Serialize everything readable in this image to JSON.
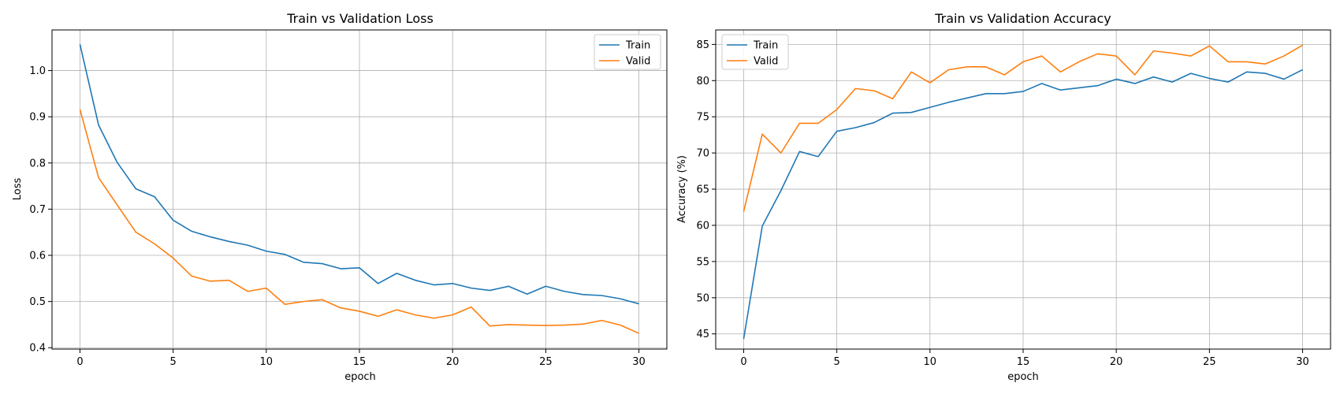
{
  "chart_data": [
    {
      "type": "line",
      "title": "Train vs Validation Loss",
      "xlabel": "epoch",
      "ylabel": "Loss",
      "xlim": [
        -1.5,
        31.5
      ],
      "ylim": [
        0.397,
        1.088
      ],
      "xticks": [
        0,
        5,
        10,
        15,
        20,
        25,
        30
      ],
      "yticks": [
        0.4,
        0.5,
        0.6,
        0.7,
        0.8,
        0.9,
        1.0
      ],
      "grid": true,
      "legend_position": "upper right",
      "x": [
        0,
        1,
        2,
        3,
        4,
        5,
        6,
        7,
        8,
        9,
        10,
        11,
        12,
        13,
        14,
        15,
        16,
        17,
        18,
        19,
        20,
        21,
        22,
        23,
        24,
        25,
        26,
        27,
        28,
        29,
        30
      ],
      "series": [
        {
          "name": "Train",
          "color": "#1f77b4",
          "values": [
            1.057,
            0.882,
            0.801,
            0.744,
            0.727,
            0.676,
            0.652,
            0.64,
            0.63,
            0.622,
            0.609,
            0.602,
            0.585,
            0.582,
            0.571,
            0.573,
            0.539,
            0.561,
            0.546,
            0.536,
            0.539,
            0.529,
            0.524,
            0.533,
            0.516,
            0.533,
            0.522,
            0.515,
            0.513,
            0.506,
            0.495
          ]
        },
        {
          "name": "Valid",
          "color": "#ff7f0e",
          "values": [
            0.916,
            0.768,
            0.709,
            0.65,
            0.625,
            0.594,
            0.555,
            0.544,
            0.546,
            0.522,
            0.529,
            0.494,
            0.5,
            0.504,
            0.486,
            0.479,
            0.468,
            0.482,
            0.471,
            0.464,
            0.471,
            0.488,
            0.447,
            0.45,
            0.449,
            0.448,
            0.449,
            0.451,
            0.459,
            0.449,
            0.431
          ]
        }
      ]
    },
    {
      "type": "line",
      "title": "Train vs Validation Accuracy",
      "xlabel": "epoch",
      "ylabel": "Accuracy (%)",
      "xlim": [
        -1.5,
        31.5
      ],
      "ylim": [
        42.9,
        87.0
      ],
      "xticks": [
        0,
        5,
        10,
        15,
        20,
        25,
        30
      ],
      "yticks": [
        45,
        50,
        55,
        60,
        65,
        70,
        75,
        80,
        85
      ],
      "grid": true,
      "legend_position": "upper left",
      "x": [
        0,
        1,
        2,
        3,
        4,
        5,
        6,
        7,
        8,
        9,
        10,
        11,
        12,
        13,
        14,
        15,
        16,
        17,
        18,
        19,
        20,
        21,
        22,
        23,
        24,
        25,
        26,
        27,
        28,
        29,
        30
      ],
      "series": [
        {
          "name": "Train",
          "color": "#1f77b4",
          "values": [
            44.3,
            59.9,
            64.8,
            70.2,
            69.5,
            73.0,
            73.5,
            74.2,
            75.5,
            75.6,
            76.3,
            77.0,
            77.6,
            78.2,
            78.2,
            78.5,
            79.6,
            78.7,
            79.0,
            79.3,
            80.2,
            79.6,
            80.5,
            79.8,
            81.0,
            80.3,
            79.8,
            81.2,
            81.0,
            80.2,
            81.5
          ]
        },
        {
          "name": "Valid",
          "color": "#ff7f0e",
          "values": [
            61.9,
            72.6,
            70.0,
            74.1,
            74.1,
            76.0,
            78.9,
            78.6,
            77.5,
            81.2,
            79.7,
            81.5,
            81.9,
            81.9,
            80.8,
            82.6,
            83.4,
            81.2,
            82.6,
            83.7,
            83.4,
            80.8,
            84.1,
            83.8,
            83.4,
            84.8,
            82.6,
            82.6,
            82.3,
            83.4,
            84.9
          ]
        }
      ]
    }
  ]
}
